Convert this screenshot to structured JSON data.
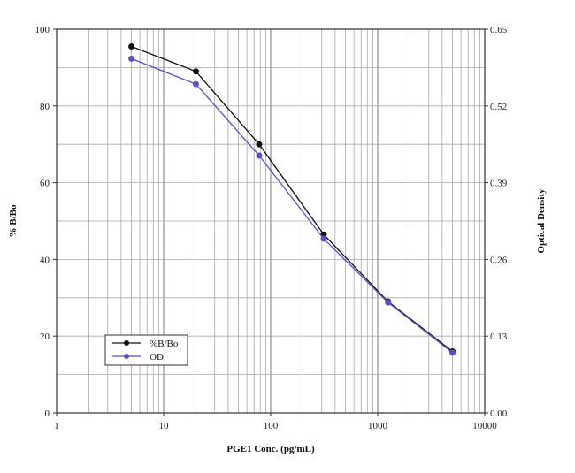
{
  "chart_data": {
    "type": "line",
    "xlabel": "PGE1 Conc. (pg/mL)",
    "ylabel": "% B/Bo",
    "y2label": "Optical Density",
    "x_scale": "log",
    "xlim": [
      1,
      10000
    ],
    "ylim": [
      0,
      100
    ],
    "y2lim": [
      0,
      0.65
    ],
    "x_ticks": [
      "1",
      "10",
      "100",
      "1000",
      "10000"
    ],
    "y_ticks": [
      "0",
      "20",
      "40",
      "60",
      "80",
      "100"
    ],
    "y2_ticks": [
      "0.00",
      "0.13",
      "0.26",
      "0.39",
      "0.52",
      "0.65"
    ],
    "grid": true,
    "legend_position": "bottom-left",
    "x": [
      5,
      20,
      78,
      313,
      1250,
      5000
    ],
    "series": [
      {
        "name": "%B/Bo",
        "axis": "left",
        "color": "#111111",
        "values": [
          95.5,
          89,
          70,
          46.5,
          29,
          16
        ]
      },
      {
        "name": "OD",
        "axis": "right",
        "color": "#5a4fd0",
        "values": [
          0.6,
          0.557,
          0.436,
          0.295,
          0.187,
          0.102
        ]
      }
    ]
  }
}
